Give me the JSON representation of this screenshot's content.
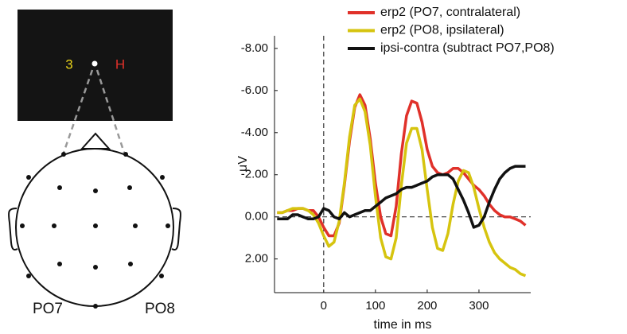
{
  "chart_data": {
    "type": "line",
    "x_label": "time in ms",
    "y_label": "μV",
    "x": [
      -90,
      -80,
      -70,
      -60,
      -50,
      -40,
      -30,
      -20,
      -10,
      0,
      10,
      20,
      30,
      40,
      50,
      60,
      70,
      80,
      90,
      100,
      110,
      120,
      130,
      140,
      150,
      160,
      170,
      180,
      190,
      200,
      210,
      220,
      230,
      240,
      250,
      260,
      270,
      280,
      290,
      300,
      310,
      320,
      330,
      340,
      350,
      360,
      370,
      380,
      390
    ],
    "series": [
      {
        "name": "erp2 (PO7, contralateral)",
        "color": "#e0312a",
        "values": [
          -0.2,
          -0.2,
          -0.3,
          -0.3,
          -0.4,
          -0.4,
          -0.3,
          -0.3,
          0.0,
          0.5,
          0.9,
          0.9,
          0.3,
          -1.5,
          -3.6,
          -5.2,
          -5.8,
          -5.3,
          -3.7,
          -1.6,
          0.0,
          0.8,
          0.9,
          -0.5,
          -3.0,
          -4.8,
          -5.5,
          -5.4,
          -4.5,
          -3.2,
          -2.4,
          -2.1,
          -2.0,
          -2.1,
          -2.3,
          -2.3,
          -2.1,
          -1.8,
          -1.5,
          -1.3,
          -1.0,
          -0.6,
          -0.3,
          -0.1,
          0.0,
          0.0,
          0.1,
          0.2,
          0.4
        ]
      },
      {
        "name": "erp2 (PO8, ipsilateral)",
        "color": "#d6c40f",
        "values": [
          -0.2,
          -0.2,
          -0.3,
          -0.4,
          -0.4,
          -0.4,
          -0.3,
          -0.1,
          0.3,
          0.9,
          1.4,
          1.2,
          0.2,
          -1.6,
          -3.8,
          -5.3,
          -5.6,
          -5.0,
          -3.4,
          -1.0,
          1.0,
          1.9,
          2.0,
          1.0,
          -1.5,
          -3.5,
          -4.2,
          -4.2,
          -3.2,
          -1.3,
          0.5,
          1.5,
          1.6,
          0.8,
          -0.6,
          -1.7,
          -2.2,
          -2.1,
          -1.4,
          -0.4,
          0.5,
          1.2,
          1.7,
          2.0,
          2.2,
          2.4,
          2.5,
          2.7,
          2.8
        ]
      },
      {
        "name": "ipsi-contra (subtract PO7,PO8)",
        "color": "#111111",
        "values": [
          0.1,
          0.1,
          0.1,
          -0.1,
          -0.1,
          0.0,
          0.1,
          0.1,
          0.0,
          -0.4,
          -0.3,
          0.0,
          0.1,
          -0.2,
          0.0,
          -0.1,
          -0.2,
          -0.3,
          -0.3,
          -0.5,
          -0.7,
          -0.9,
          -1.0,
          -1.1,
          -1.3,
          -1.4,
          -1.4,
          -1.5,
          -1.6,
          -1.7,
          -1.9,
          -2.0,
          -2.0,
          -2.0,
          -1.8,
          -1.3,
          -0.8,
          -0.2,
          0.5,
          0.4,
          0.0,
          -0.7,
          -1.3,
          -1.8,
          -2.1,
          -2.3,
          -2.4,
          -2.4,
          -2.4
        ]
      }
    ],
    "xlim": [
      -95,
      400
    ],
    "xticks": [
      0,
      100,
      200,
      300
    ],
    "ylim": [
      -8.6,
      3.6
    ],
    "y_inverted": true,
    "yticks": [
      {
        "value": -8,
        "label": "-8.00"
      },
      {
        "value": -6,
        "label": "-6.00"
      },
      {
        "value": -4,
        "label": "-4.00"
      },
      {
        "value": -2,
        "label": "-2.00"
      },
      {
        "value": 0,
        "label": "0.00"
      },
      {
        "value": 2,
        "label": "2.00"
      }
    ],
    "reference_lines": {
      "x": [
        0
      ],
      "y": [
        0
      ]
    },
    "legend": "top"
  },
  "diagram": {
    "stimulus": {
      "left": "3",
      "right": "H"
    },
    "electrodes": {
      "left": "PO7",
      "right": "PO8"
    }
  }
}
